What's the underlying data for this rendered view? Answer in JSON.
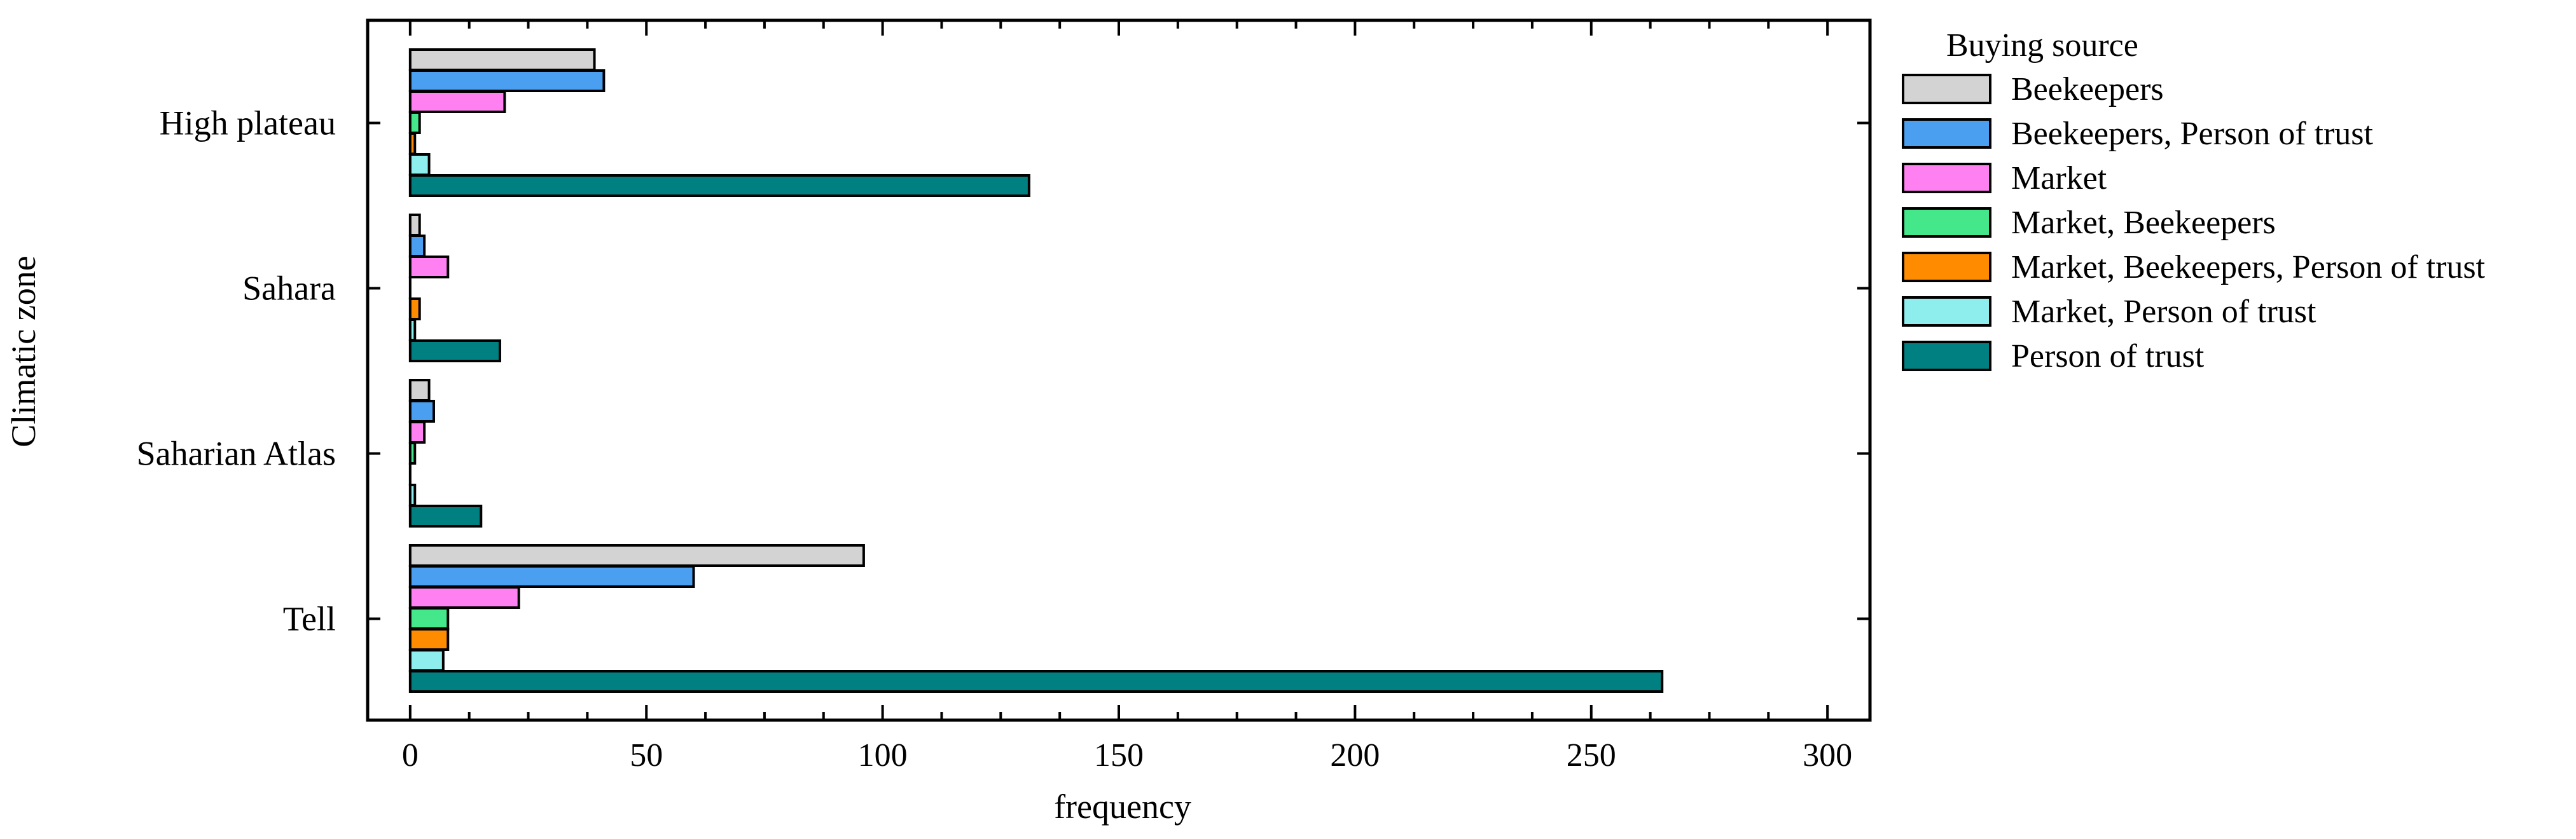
{
  "chart_data": {
    "type": "bar",
    "orientation": "horizontal",
    "xlabel": "frequency",
    "ylabel": "Climatic zone",
    "xlim": [
      -9,
      309
    ],
    "xticks": [
      0,
      50,
      100,
      150,
      200,
      250,
      300
    ],
    "categories": [
      "High plateau",
      "Sahara",
      "Saharian Atlas",
      "Tell"
    ],
    "legend": {
      "title": "Buying source",
      "placement": "right"
    },
    "grid": false,
    "series": [
      {
        "name": "Beekeepers",
        "color": "#d3d3d3",
        "values": [
          39,
          2,
          4,
          96
        ]
      },
      {
        "name": "Beekeepers, Person of trust",
        "color": "#4a9ff0",
        "values": [
          41,
          3,
          5,
          60
        ]
      },
      {
        "name": "Market",
        "color": "#ff80f0",
        "values": [
          20,
          8,
          3,
          23
        ]
      },
      {
        "name": "Market, Beekeepers",
        "color": "#44e88a",
        "values": [
          2,
          0,
          1,
          8
        ]
      },
      {
        "name": "Market, Beekeepers, Person of trust",
        "color": "#ff8c00",
        "values": [
          1,
          2,
          0,
          8
        ]
      },
      {
        "name": "Market, Person of trust",
        "color": "#8eeeee",
        "values": [
          4,
          1,
          1,
          7
        ]
      },
      {
        "name": "Person of trust",
        "color": "#008080",
        "values": [
          131,
          19,
          15,
          265
        ]
      }
    ]
  }
}
